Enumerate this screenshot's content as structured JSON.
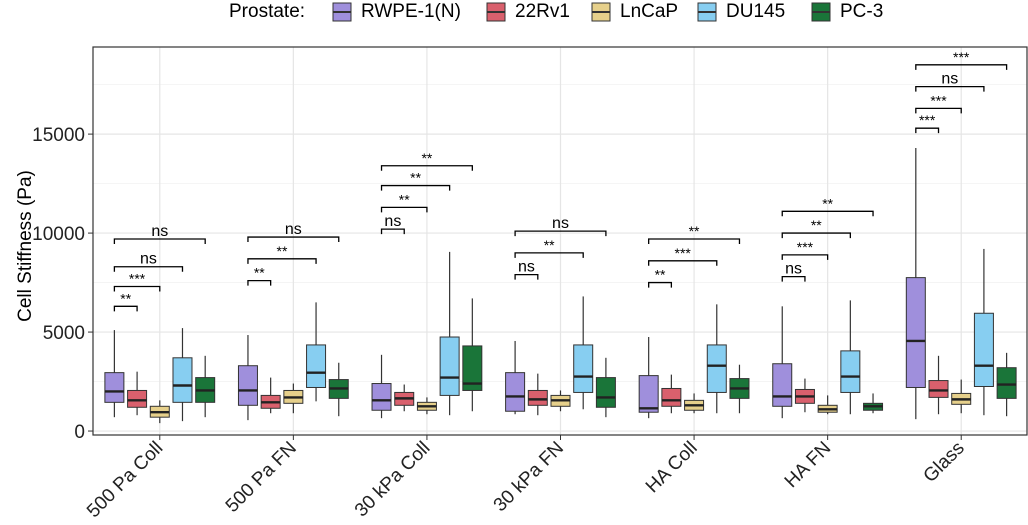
{
  "chart_data": {
    "type": "boxplot",
    "title": "",
    "xlabel": "",
    "ylabel": "Cell Stiffness (Pa)",
    "ylim": [
      -200,
      19400
    ],
    "yticks": [
      0,
      5000,
      10000,
      15000
    ],
    "grid": true,
    "legend": {
      "title": "Prostate:",
      "position": "top",
      "entries": [
        "RWPE-1(N)",
        "22Rv1",
        "LnCaP",
        "DU145",
        "PC-3"
      ]
    },
    "series_colors": [
      "#9f8fdc",
      "#d9606d",
      "#e6d08b",
      "#87cef1",
      "#1a7539"
    ],
    "categories": [
      "500 Pa Coll",
      "500 Pa FN",
      "30 kPa Coll",
      "30 kPa FN",
      "HA Coll",
      "HA FN",
      "Glass"
    ],
    "boxes": [
      [
        [
          700,
          1450,
          2000,
          2950,
          5100
        ],
        [
          800,
          1200,
          1550,
          2050,
          3000
        ],
        [
          400,
          700,
          950,
          1250,
          1550
        ],
        [
          500,
          1450,
          2300,
          3700,
          5200
        ],
        [
          700,
          1450,
          2050,
          2700,
          3800
        ]
      ],
      [
        [
          550,
          1300,
          2050,
          3300,
          4850
        ],
        [
          900,
          1150,
          1450,
          1800,
          2700
        ],
        [
          900,
          1400,
          1700,
          2050,
          2400
        ],
        [
          1500,
          2200,
          2950,
          4350,
          6500
        ],
        [
          750,
          1650,
          2150,
          2600,
          3450
        ]
      ],
      [
        [
          650,
          1050,
          1550,
          2400,
          3850
        ],
        [
          1000,
          1300,
          1650,
          1950,
          2350
        ],
        [
          850,
          1050,
          1250,
          1450,
          1700
        ],
        [
          800,
          1800,
          2700,
          4750,
          9050
        ],
        [
          1000,
          2050,
          2400,
          4300,
          6700
        ]
      ],
      [
        [
          850,
          1000,
          1750,
          2950,
          4550
        ],
        [
          800,
          1300,
          1600,
          2050,
          2900
        ],
        [
          1000,
          1250,
          1550,
          1800,
          2050
        ],
        [
          1100,
          1950,
          2750,
          4350,
          6800
        ],
        [
          700,
          1200,
          1700,
          2700,
          3700
        ]
      ],
      [
        [
          650,
          950,
          1150,
          2800,
          4750
        ],
        [
          900,
          1250,
          1550,
          2150,
          2850
        ],
        [
          900,
          1050,
          1300,
          1550,
          1900
        ],
        [
          900,
          1950,
          3300,
          4350,
          6400
        ],
        [
          900,
          1650,
          2150,
          2650,
          3350
        ]
      ],
      [
        [
          650,
          1250,
          1750,
          3400,
          6300
        ],
        [
          950,
          1400,
          1750,
          2100,
          2650
        ],
        [
          850,
          950,
          1100,
          1300,
          1800
        ],
        [
          850,
          1950,
          2750,
          4050,
          6600
        ],
        [
          900,
          1050,
          1250,
          1400,
          1900
        ]
      ],
      [
        [
          600,
          2200,
          4550,
          7750,
          14300
        ],
        [
          850,
          1700,
          2050,
          2550,
          3800
        ],
        [
          900,
          1350,
          1600,
          1900,
          2600
        ],
        [
          800,
          2250,
          3300,
          5950,
          9200
        ],
        [
          750,
          1650,
          2350,
          3200,
          3950
        ]
      ]
    ],
    "annotations": [
      [
        {
          "from": "RWPE-1(N)",
          "to": "22Rv1",
          "label": "**",
          "y": 6300
        },
        {
          "from": "RWPE-1(N)",
          "to": "LnCaP",
          "label": "***",
          "y": 7300
        },
        {
          "from": "RWPE-1(N)",
          "to": "DU145",
          "label": "ns",
          "y": 8300
        },
        {
          "from": "RWPE-1(N)",
          "to": "PC-3",
          "label": "ns",
          "y": 9700
        }
      ],
      [
        {
          "from": "RWPE-1(N)",
          "to": "22Rv1",
          "label": "**",
          "y": 7600
        },
        {
          "from": "RWPE-1(N)",
          "to": "DU145",
          "label": "**",
          "y": 8700
        },
        {
          "from": "RWPE-1(N)",
          "to": "PC-3",
          "label": "ns",
          "y": 9800
        }
      ],
      [
        {
          "from": "RWPE-1(N)",
          "to": "22Rv1",
          "label": "ns",
          "y": 10200
        },
        {
          "from": "RWPE-1(N)",
          "to": "LnCaP",
          "label": "**",
          "y": 11300
        },
        {
          "from": "RWPE-1(N)",
          "to": "DU145",
          "label": "**",
          "y": 12400
        },
        {
          "from": "RWPE-1(N)",
          "to": "PC-3",
          "label": "**",
          "y": 13400
        }
      ],
      [
        {
          "from": "RWPE-1(N)",
          "to": "22Rv1",
          "label": "ns",
          "y": 7900
        },
        {
          "from": "RWPE-1(N)",
          "to": "DU145",
          "label": "**",
          "y": 9000
        },
        {
          "from": "RWPE-1(N)",
          "to": "PC-3",
          "label": "ns",
          "y": 10100
        }
      ],
      [
        {
          "from": "RWPE-1(N)",
          "to": "22Rv1",
          "label": "**",
          "y": 7500
        },
        {
          "from": "RWPE-1(N)",
          "to": "DU145",
          "label": "***",
          "y": 8600
        },
        {
          "from": "RWPE-1(N)",
          "to": "PC-3",
          "label": "**",
          "y": 9700
        }
      ],
      [
        {
          "from": "RWPE-1(N)",
          "to": "22Rv1",
          "label": "ns",
          "y": 7800
        },
        {
          "from": "RWPE-1(N)",
          "to": "LnCaP",
          "label": "***",
          "y": 8900
        },
        {
          "from": "RWPE-1(N)",
          "to": "DU145",
          "label": "**",
          "y": 10000
        },
        {
          "from": "RWPE-1(N)",
          "to": "PC-3",
          "label": "**",
          "y": 11100
        }
      ],
      [
        {
          "from": "RWPE-1(N)",
          "to": "22Rv1",
          "label": "***",
          "y": 15300
        },
        {
          "from": "RWPE-1(N)",
          "to": "LnCaP",
          "label": "***",
          "y": 16300
        },
        {
          "from": "RWPE-1(N)",
          "to": "DU145",
          "label": "ns",
          "y": 17400
        },
        {
          "from": "RWPE-1(N)",
          "to": "PC-3",
          "label": "***",
          "y": 18500
        }
      ]
    ]
  }
}
